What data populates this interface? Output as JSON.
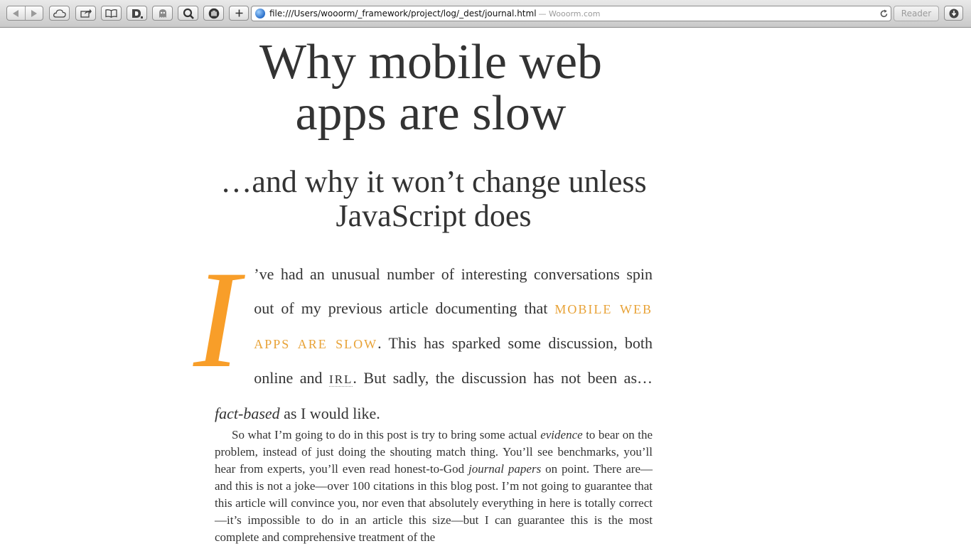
{
  "browser": {
    "address_url": "file:///Users/wooorm/_framework/project/log/_dest/journal.html",
    "address_site": "— Wooorm.com",
    "reader_label": "Reader",
    "toolbar_icons": [
      "back-icon",
      "forward-icon",
      "cloud-icon",
      "share-icon",
      "bookmarks-icon",
      "d-extension-icon",
      "ghost-extension-icon",
      "zoom-extension-icon",
      "hand-extension-icon",
      "add-tab-icon",
      "globe-icon",
      "reload-icon",
      "downloads-icon"
    ]
  },
  "article": {
    "title": "Why mobile web apps are slow",
    "subtitle": "…and why it won’t change unless JavaScript does",
    "dropcap": "I",
    "lead": {
      "part1": "’ve had an unusual number of interesting conversations spin out of my previous article documenting that ",
      "link_text": "mobile web apps are slow",
      "part2": ". This has sparked some discussion, both online and ",
      "abbr": "IRL",
      "part3": ". But sadly, the discussion has not been as… ",
      "emphasis": "fact-based",
      "part4": " as I would like."
    },
    "paragraph": {
      "part1": "So what I’m going to do in this post is try to bring some actual ",
      "em1": "evidence",
      "part2": " to bear on the problem, instead of just doing the shouting match thing. You’ll see bench­marks, you’ll hear from experts, you’ll even read honest-to-God ",
      "em2": "journal papers",
      "part3": " on point. There are—and this is not a joke—over 100 citations in this blog post. I’m not going to guarantee that this article will convince you, nor even that absolutely everything in here is totally correct—it’s impossible to do in an article this size—but I can guarantee this is the most complete and comprehensive treatment of the"
    }
  },
  "colors": {
    "accent": "#f89e29",
    "link": "#e8a236",
    "text": "#333333"
  }
}
